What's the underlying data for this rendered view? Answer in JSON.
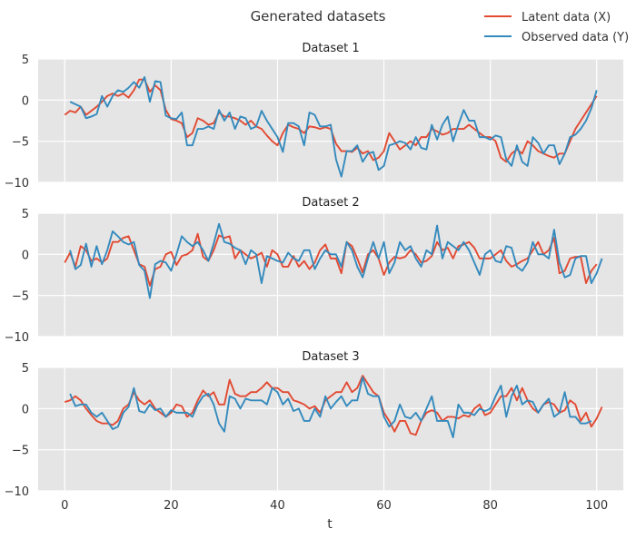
{
  "chart_data": {
    "type": "line",
    "title": "Generated datasets",
    "xlabel": "t",
    "legend_position": "top-right",
    "legend": [
      {
        "label": "Latent data (X)",
        "color": "#e24a33"
      },
      {
        "label": "Observed data (Y)",
        "color": "#348abd"
      }
    ],
    "colors": {
      "plot_background": "#e5e5e5",
      "grid": "#ffffff",
      "text": "#333333"
    },
    "grid": true,
    "xlim": [
      -5,
      105
    ],
    "ylim": [
      -10,
      5
    ],
    "x_ticks": [
      0,
      20,
      40,
      60,
      80,
      100
    ],
    "y_ticks": [
      5,
      0,
      -5,
      -10
    ],
    "panels": [
      {
        "title": "Dataset 1",
        "series": [
          {
            "name": "Latent data (X)",
            "values": [
              -1.8,
              -1.3,
              -1.5,
              -0.8,
              -1.8,
              -1.3,
              -0.8,
              -0.2,
              0.5,
              0.8,
              0.5,
              0.8,
              0.3,
              1.2,
              2.5,
              2.5,
              1.0,
              1.8,
              1.2,
              -1.2,
              -2.3,
              -2.5,
              -2.8,
              -4.5,
              -4.0,
              -2.2,
              -2.5,
              -3.0,
              -2.8,
              -1.5,
              -2.0,
              -2.0,
              -2.2,
              -2.5,
              -3.0,
              -2.5,
              -3.2,
              -3.5,
              -4.3,
              -5.0,
              -5.5,
              -4.0,
              -3.0,
              -3.3,
              -3.5,
              -4.0,
              -3.2,
              -3.3,
              -3.5,
              -3.3,
              -3.5,
              -5.3,
              -6.2,
              -6.2,
              -6.3,
              -5.8,
              -6.5,
              -6.2,
              -7.3,
              -7.0,
              -6.2,
              -4.0,
              -5.0,
              -6.0,
              -5.5,
              -5.0,
              -5.5,
              -4.5,
              -4.5,
              -3.5,
              -3.8,
              -4.2,
              -4.0,
              -3.5,
              -3.5,
              -3.5,
              -3.0,
              -3.5,
              -4.0,
              -4.5,
              -4.5,
              -5.0,
              -7.0,
              -7.5,
              -6.5,
              -6.0,
              -6.5,
              -5.0,
              -5.5,
              -6.2,
              -6.5,
              -6.8,
              -7.0,
              -6.5,
              -6.5,
              -5.0,
              -3.5,
              -2.5,
              -1.5,
              -0.5,
              0.5
            ]
          },
          {
            "name": "Observed data (Y)",
            "values": [
              null,
              -0.2,
              -0.5,
              -0.8,
              -2.2,
              -2.0,
              -1.7,
              0.5,
              -0.8,
              0.5,
              1.2,
              1.0,
              1.5,
              2.2,
              1.5,
              2.8,
              -0.2,
              2.3,
              2.2,
              -1.9,
              -2.2,
              -2.3,
              -1.5,
              -5.5,
              -5.5,
              -3.5,
              -3.5,
              -3.2,
              -3.5,
              -1.2,
              -2.5,
              -1.5,
              -3.5,
              -2.0,
              -2.2,
              -3.5,
              -3.2,
              -1.3,
              -2.5,
              -3.5,
              -4.5,
              -6.3,
              -2.8,
              -2.8,
              -3.2,
              -5.5,
              -1.5,
              -1.8,
              -3.2,
              -3.2,
              -3.0,
              -7.2,
              -9.3,
              -6.2,
              -6.2,
              -5.5,
              -7.5,
              -6.5,
              -6.3,
              -8.5,
              -8.0,
              -5.5,
              -5.3,
              -5.0,
              -5.2,
              -6.0,
              -4.5,
              -5.8,
              -6.0,
              -3.0,
              -4.8,
              -3.0,
              -2.0,
              -5.0,
              -3.0,
              -1.2,
              -2.5,
              -2.5,
              -4.5,
              -4.5,
              -4.8,
              -4.3,
              -4.5,
              -7.2,
              -8.0,
              -5.5,
              -7.5,
              -8.0,
              -4.5,
              -5.2,
              -6.5,
              -5.5,
              -5.5,
              -7.8,
              -6.5,
              -4.5,
              -4.2,
              -3.5,
              -2.5,
              -1.0,
              1.2
            ]
          }
        ]
      },
      {
        "title": "Dataset 2",
        "series": [
          {
            "name": "Latent data (X)",
            "values": [
              -1.0,
              0.2,
              -1.5,
              1.0,
              0.5,
              -0.8,
              -0.5,
              -1.0,
              -0.5,
              1.5,
              1.5,
              2.0,
              2.2,
              0.5,
              -1.2,
              -1.5,
              -3.8,
              -1.8,
              -1.5,
              0.0,
              0.3,
              -1.3,
              -0.2,
              0.0,
              0.5,
              2.5,
              -0.3,
              -0.8,
              0.5,
              2.3,
              2.0,
              2.2,
              -0.5,
              0.5,
              0.0,
              -0.5,
              -0.2,
              0.2,
              -1.5,
              0.5,
              0.0,
              -1.5,
              -1.5,
              -0.2,
              -1.5,
              -0.8,
              -1.8,
              -1.0,
              0.5,
              1.2,
              -0.5,
              -0.5,
              -2.3,
              1.5,
              1.0,
              -0.5,
              -2.2,
              0.0,
              0.5,
              -0.5,
              -2.5,
              -1.0,
              -0.3,
              -0.5,
              -0.3,
              0.5,
              0.0,
              -1.0,
              -0.8,
              -0.2,
              1.5,
              0.5,
              0.8,
              -0.5,
              1.0,
              1.2,
              1.5,
              0.8,
              -0.5,
              -0.5,
              -0.5,
              0.0,
              0.5,
              -0.8,
              -1.5,
              -1.2,
              -0.8,
              -0.5,
              0.5,
              1.5,
              0.0,
              0.5,
              2.0,
              -2.3,
              -2.0,
              -0.5,
              -0.3,
              -0.3,
              -3.5,
              -2.0,
              -1.2
            ]
          },
          {
            "name": "Observed data (Y)",
            "values": [
              null,
              0.5,
              -1.8,
              -1.3,
              1.3,
              -1.5,
              1.0,
              -1.2,
              0.5,
              2.8,
              2.2,
              1.5,
              1.2,
              1.5,
              -1.3,
              -2.0,
              -5.3,
              -1.2,
              -0.8,
              -1.0,
              -2.0,
              0.0,
              2.2,
              1.5,
              1.0,
              1.5,
              0.5,
              -0.8,
              1.3,
              3.7,
              1.5,
              1.3,
              0.8,
              0.5,
              -1.2,
              0.5,
              0.0,
              -3.5,
              -0.2,
              -0.5,
              -0.8,
              -1.0,
              0.2,
              -0.5,
              -0.8,
              0.5,
              0.5,
              -1.8,
              -0.5,
              0.5,
              0.0,
              0.0,
              -1.5,
              1.5,
              0.5,
              -1.5,
              -2.8,
              -0.5,
              1.5,
              -0.5,
              1.5,
              -2.3,
              -1.0,
              1.5,
              0.5,
              1.0,
              -0.5,
              -1.5,
              0.5,
              0.0,
              3.5,
              -0.5,
              1.5,
              1.0,
              0.5,
              1.5,
              0.5,
              -1.0,
              -2.5,
              0.0,
              0.5,
              -0.8,
              -1.0,
              1.0,
              0.8,
              -1.5,
              -2.0,
              -1.0,
              1.5,
              0.0,
              0.0,
              -0.5,
              3.0,
              -1.0,
              -2.8,
              -2.5,
              -0.5,
              -0.2,
              -0.2,
              -3.5,
              -2.3,
              -0.5
            ]
          }
        ]
      },
      {
        "title": "Dataset 3",
        "series": [
          {
            "name": "Latent data (X)",
            "values": [
              0.8,
              1.0,
              1.5,
              1.0,
              0.0,
              -0.8,
              -1.5,
              -1.8,
              -1.8,
              -2.0,
              -1.5,
              0.0,
              0.5,
              2.0,
              1.0,
              0.5,
              1.0,
              0.0,
              -0.5,
              -1.0,
              -0.5,
              0.5,
              0.3,
              -1.0,
              -0.5,
              1.0,
              2.2,
              1.5,
              2.0,
              0.5,
              0.5,
              3.5,
              1.8,
              1.5,
              1.5,
              2.0,
              2.0,
              2.5,
              3.2,
              2.5,
              2.5,
              2.0,
              2.0,
              1.0,
              0.8,
              0.5,
              0.0,
              0.3,
              -0.5,
              1.0,
              1.5,
              2.0,
              2.0,
              3.2,
              2.0,
              2.5,
              4.0,
              3.0,
              2.0,
              1.5,
              -0.5,
              -1.5,
              -2.8,
              -1.5,
              -1.5,
              -3.0,
              -3.2,
              -1.5,
              -0.5,
              -0.2,
              -0.5,
              -1.5,
              -1.0,
              -1.0,
              -1.2,
              -0.8,
              -1.0,
              0.0,
              0.5,
              -0.8,
              -0.5,
              0.5,
              1.5,
              1.5,
              2.5,
              1.0,
              2.5,
              1.0,
              0.0,
              -0.5,
              0.5,
              0.8,
              0.5,
              -0.5,
              -0.2,
              1.0,
              0.5,
              -1.5,
              -0.5,
              -2.2,
              -1.2,
              0.2
            ]
          },
          {
            "name": "Observed data (Y)",
            "values": [
              null,
              1.8,
              0.3,
              0.5,
              0.5,
              -0.5,
              -1.0,
              -0.5,
              -1.5,
              -2.5,
              -2.2,
              -0.5,
              0.2,
              2.5,
              -0.3,
              -0.5,
              0.5,
              -0.2,
              0.0,
              -1.0,
              -0.2,
              -0.5,
              -0.5,
              -0.5,
              -1.0,
              0.5,
              1.5,
              1.8,
              0.5,
              -1.8,
              -2.8,
              1.5,
              1.2,
              0.0,
              1.2,
              1.0,
              1.0,
              1.0,
              0.5,
              2.5,
              2.0,
              0.5,
              1.2,
              -0.3,
              0.0,
              -1.5,
              -1.5,
              0.0,
              -1.0,
              1.5,
              0.0,
              0.8,
              1.5,
              0.3,
              1.0,
              1.0,
              3.8,
              1.8,
              1.5,
              1.5,
              -1.0,
              -2.2,
              -1.5,
              0.5,
              -1.0,
              -1.2,
              -0.5,
              -1.5,
              0.0,
              1.5,
              -1.5,
              -1.5,
              -1.5,
              -3.5,
              0.5,
              -0.5,
              -0.5,
              -0.8,
              0.0,
              -0.3,
              0.0,
              1.5,
              2.8,
              -1.0,
              1.5,
              2.8,
              0.5,
              1.0,
              0.8,
              -0.5,
              0.5,
              1.2,
              -1.0,
              -0.5,
              2.0,
              -1.0,
              -1.0,
              -1.8,
              -1.8,
              -1.5
            ]
          }
        ]
      }
    ]
  }
}
